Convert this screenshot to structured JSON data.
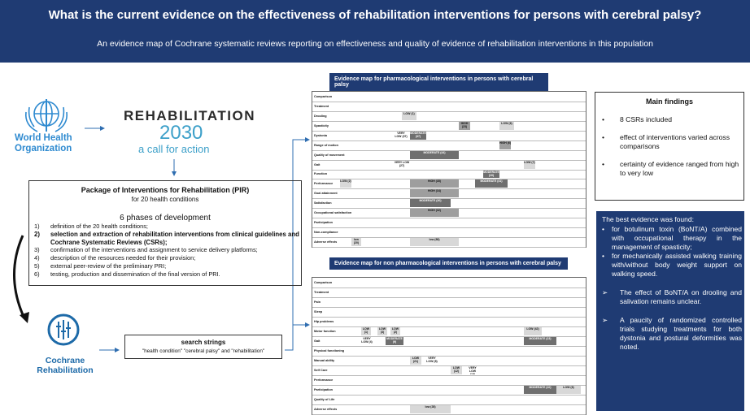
{
  "header": {
    "title": "What is the current evidence on the effectiveness of rehabilitation interventions for persons with cerebral palsy?",
    "subtitle": "An evidence map of Cochrane systematic reviews reporting on effectiveness and quality of evidence of rehabilitation interventions in this population"
  },
  "who": {
    "line1": "World Health",
    "line2": "Organization"
  },
  "rehab2030": {
    "word": "REHABILITATION",
    "year": "2030",
    "tagline": "a call for action"
  },
  "pir": {
    "title": "Package of Interventions for Rehabilitation (PIR)",
    "subtitle": "for 20 health conditions",
    "phases_heading": "6 phases of development",
    "phases": [
      {
        "n": "1)",
        "text": "definition of the 20 health conditions;"
      },
      {
        "n": "2)",
        "text": "selection and extraction of rehabilitation interventions from clinical guidelines and Cochrane Systematic Reviews (CSRs);"
      },
      {
        "n": "3)",
        "text": "confirmation of the interventions and assignment to service delivery platforms;"
      },
      {
        "n": "4)",
        "text": "description of the resources needed for their provision;"
      },
      {
        "n": "5)",
        "text": "external peer-review of the preliminary PRI;"
      },
      {
        "n": "6)",
        "text": "testing, production and dissemination of the final version of PRI."
      }
    ]
  },
  "cochrane": {
    "line1": "Cochrane",
    "line2": "Rehabilitation"
  },
  "search": {
    "title": "search strings",
    "terms": "\"health condition\" \"cerebral palsy\" and \"rehabilitation\""
  },
  "map1": {
    "title": "Evidence map for pharmacological interventions in persons with cerebral palsy",
    "rows": [
      "Comparison",
      "Treatment",
      "Drooling",
      "Spasticity",
      "Dystonia",
      "Range of motion",
      "Quality of movement",
      "Gait",
      "Function",
      "Performance",
      "Goal attainment",
      "Satisfaction",
      "Occupational satisfaction",
      "Participation",
      "Non-compliance",
      "Adverse effects"
    ],
    "cells": [
      "LOW (1)",
      "MODERATE (44)",
      "HIGH (23)",
      "VERY LOW (37)",
      "LOW (2)",
      "HIGH (35)",
      "MODERATE (41)",
      "HIGH (34)",
      "LOW (7)",
      "low (88)",
      "low (20)",
      "MODERATE (30)",
      "LOW (6)",
      "HIGH (6)",
      "MODERATE (37)",
      "VERY LOW (27)",
      "HIGH (32)",
      "MODERATE (10)"
    ]
  },
  "map2": {
    "title": "Evidence map for non pharmacological interventions in persons with cerebral palsy",
    "rows": [
      "Comparison",
      "Treatment",
      "Pain",
      "Sleep",
      "Hip problems",
      "Motor function",
      "Gait",
      "Physical functioning",
      "Manual ability",
      "Self Care",
      "Performance",
      "Participation",
      "Quality of Life",
      "Adverse effects"
    ],
    "cells": [
      "LOW (1)",
      "LOW (3)",
      "LOW (2)",
      "MODERATE (9)",
      "VERY LOW (4)",
      "LOW (21)",
      "VERY LOW (8)",
      "LOW (42)",
      "MODERATE (23)",
      "LOW (12)",
      "VERY LOW (18)",
      "MODERATE (10)",
      "LOW (6)",
      "low (28)"
    ]
  },
  "findings": {
    "title": "Main findings",
    "items": [
      "8 CSRs included",
      "effect of interventions varied across comparisons",
      "certainty of evidence ranged from high to very low"
    ]
  },
  "best": {
    "title": "The best evidence was found:",
    "bullets": [
      "for botulinum toxin (BoNT/A) combined with occupational therapy in the management of spasticity;",
      "for mechanically assisted walking training with/without body weight support on walking speed."
    ],
    "arrows": [
      "The effect of BoNT/A on drooling and salivation remains unclear.",
      "A paucity of randomized controlled trials studying treatments for both dystonia and postural deformities was noted."
    ]
  }
}
